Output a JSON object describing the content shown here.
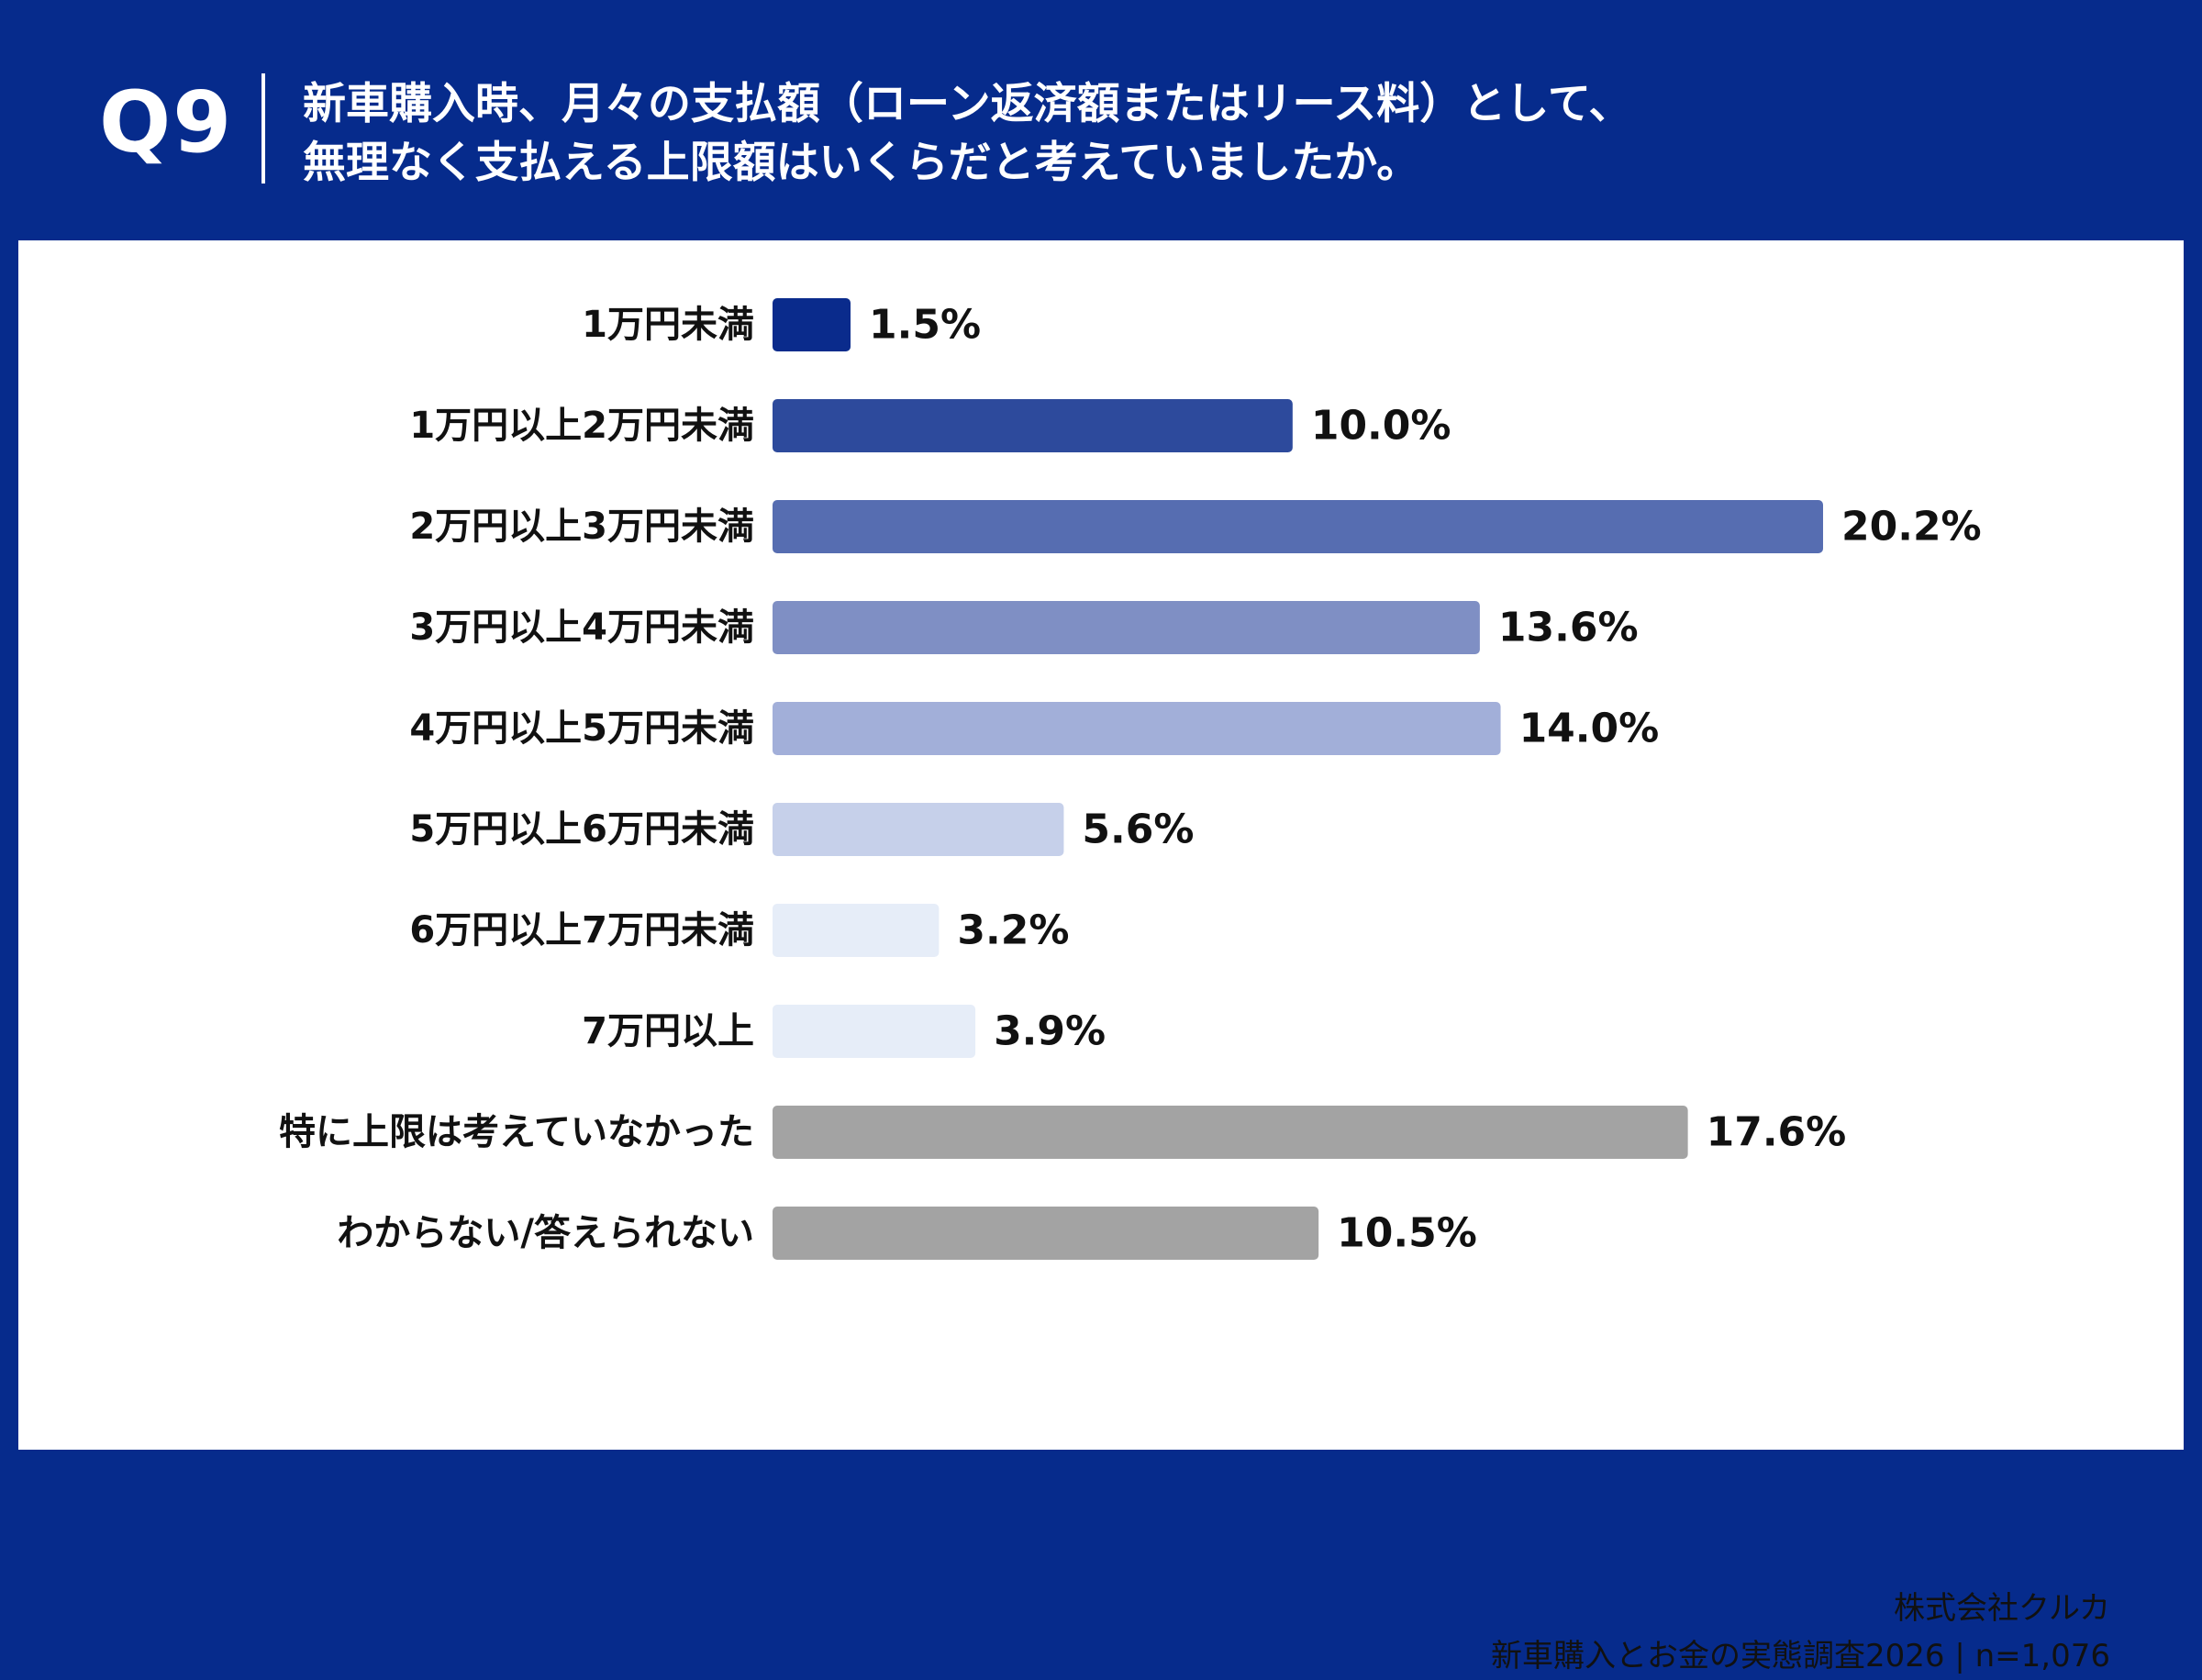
{
  "question": {
    "number": "Q9",
    "line1": "新車購入時、月々の支払額（ローン返済額またはリース料）として、",
    "line2": "無理なく支払える上限額はいくらだと考えていましたか。"
  },
  "footer": {
    "company": "株式会社クルカ",
    "survey": "新車購入とお金の実態調査2026 | n=1,076"
  },
  "chart_data": {
    "type": "bar",
    "orientation": "horizontal",
    "title": "新車購入時、月々の支払額（ローン返済額またはリース料）として、無理なく支払える上限額はいくらだと考えていましたか。",
    "categories": [
      "1万円未満",
      "1万円以上2万円未満",
      "2万円以上3万円未満",
      "3万円以上4万円未満",
      "4万円以上5万円未満",
      "5万円以上6万円未満",
      "6万円以上7万円未満",
      "7万円以上",
      "特に上限は考えていなかった",
      "わからない/答えられない"
    ],
    "values": [
      1.5,
      10.0,
      20.2,
      13.6,
      14.0,
      5.6,
      3.2,
      3.9,
      17.6,
      10.5
    ],
    "value_labels": [
      "1.5%",
      "10.0%",
      "20.2%",
      "13.6%",
      "14.0%",
      "5.6%",
      "3.2%",
      "3.9%",
      "17.6%",
      "10.5%"
    ],
    "colors": [
      "#0a2b8c",
      "#2d4a9c",
      "#566db1",
      "#7f8fc4",
      "#a2afd9",
      "#c6d0ea",
      "#e6edf8",
      "#e6edf8",
      "#a3a3a3",
      "#a3a3a3"
    ],
    "unit": "%",
    "xlim": [
      0,
      20.2
    ],
    "grid": false,
    "legend": "none"
  }
}
